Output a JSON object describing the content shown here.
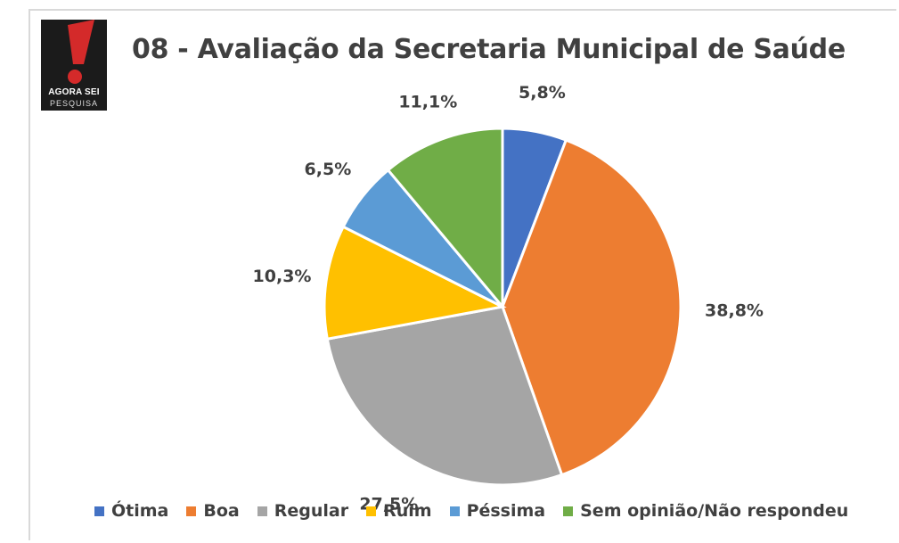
{
  "logo": {
    "line1": "AGORA SEI",
    "line2": "PESQUISA"
  },
  "chart_data": {
    "type": "pie",
    "title": "08 - Avaliação da Secretaria Municipal de Saúde",
    "categories": [
      "Ótima",
      "Boa",
      "Regular",
      "Ruim",
      "Péssima",
      "Sem opinião/Não respondeu"
    ],
    "values": [
      5.8,
      38.8,
      27.5,
      10.3,
      6.5,
      11.1
    ],
    "labels": [
      "5,8%",
      "38,8%",
      "27,5%",
      "10,3%",
      "6,5%",
      "11,1%"
    ],
    "colors": [
      "#4472c4",
      "#ed7d31",
      "#a5a5a5",
      "#ffc000",
      "#5b9bd5",
      "#70ad47"
    ],
    "start": "12 o'clock",
    "direction": "clockwise",
    "legend_position": "bottom"
  }
}
